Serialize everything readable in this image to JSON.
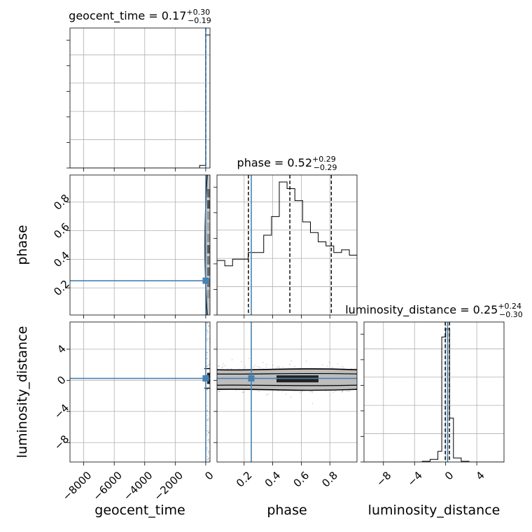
{
  "chart_data": {
    "type": "corner",
    "parameters": [
      "geocent_time",
      "phase",
      "luminosity_distance"
    ],
    "truth": {
      "geocent_time": 0.0,
      "phase": 0.25,
      "luminosity_distance": 0.25
    },
    "axis_labels": {
      "geocent_time": "geocent_time",
      "phase": "phase",
      "luminosity_distance": "luminosity_distance"
    },
    "ranges": {
      "geocent_time": [
        -8900,
        280
      ],
      "phase": [
        0.01,
        0.99
      ],
      "luminosity_distance": [
        -10.5,
        7.5
      ]
    },
    "ticks": {
      "geocent_time": [
        {
          "v": -8000,
          "t": "−8000"
        },
        {
          "v": -6000,
          "t": "−6000"
        },
        {
          "v": -4000,
          "t": "−4000"
        },
        {
          "v": -2000,
          "t": "−2000"
        },
        {
          "v": 0,
          "t": "0"
        }
      ],
      "phase": [
        {
          "v": 0.2,
          "t": "0.2"
        },
        {
          "v": 0.4,
          "t": "0.4"
        },
        {
          "v": 0.6,
          "t": "0.6"
        },
        {
          "v": 0.8,
          "t": "0.8"
        }
      ],
      "luminosity_distance": [
        {
          "v": -8,
          "t": "−8"
        },
        {
          "v": -4,
          "t": "−4"
        },
        {
          "v": 0,
          "t": "0"
        },
        {
          "v": 4,
          "t": "4"
        }
      ]
    },
    "titles": {
      "geocent_time": {
        "name": "geocent_time",
        "value": "0.17",
        "plus": "+0.30",
        "minus": "−0.19"
      },
      "phase": {
        "name": "phase",
        "value": "0.52",
        "plus": "+0.29",
        "minus": "−0.29"
      },
      "luminosity_distance": {
        "name": "luminosity_distance",
        "value": "0.25",
        "plus": "+0.24",
        "minus": "−0.30"
      }
    },
    "quantiles": {
      "geocent_time": [
        -0.02,
        0.17,
        0.47
      ],
      "phase": [
        0.23,
        0.52,
        0.81
      ],
      "luminosity_distance": [
        -0.05,
        0.25,
        0.49
      ]
    },
    "histograms": {
      "phase": {
        "edges": [
          0.01,
          0.0645,
          0.119,
          0.1735,
          0.228,
          0.2825,
          0.337,
          0.3915,
          0.446,
          0.5005,
          0.555,
          0.6095,
          0.664,
          0.7185,
          0.773,
          0.8275,
          0.882,
          0.9365,
          0.991
        ],
        "counts": [
          0.41,
          0.37,
          0.42,
          0.42,
          0.47,
          0.47,
          0.6,
          0.74,
          1.0,
          0.95,
          0.86,
          0.7,
          0.62,
          0.55,
          0.52,
          0.47,
          0.49,
          0.45
        ]
      },
      "luminosity_distance": {
        "edges": [
          -10.5,
          -3.0,
          -2.0,
          -1.0,
          -0.5,
          0.0,
          0.5,
          1.0,
          2.0,
          3.0,
          7.5
        ],
        "counts": [
          0.0,
          0.005,
          0.02,
          0.08,
          0.94,
          1.0,
          0.33,
          0.03,
          0.005,
          0.0
        ]
      },
      "geocent_time": {
        "edges": [
          -8900,
          -400,
          -10,
          30,
          280
        ],
        "counts": [
          0.0,
          0.02,
          1.0,
          1.0
        ]
      }
    }
  }
}
